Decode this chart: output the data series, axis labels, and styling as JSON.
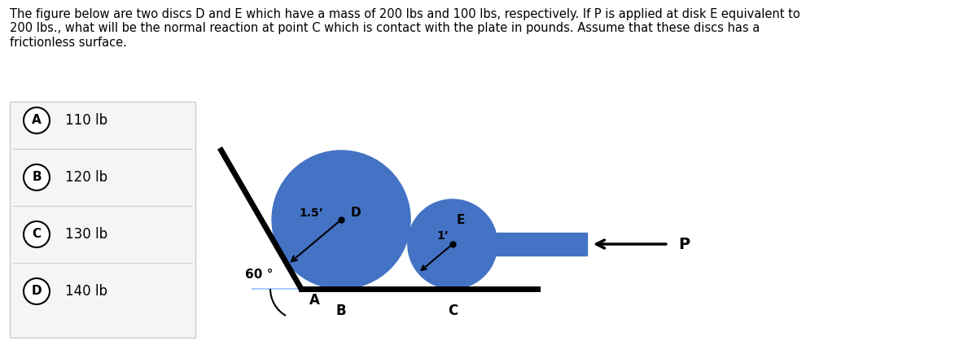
{
  "bg_color": "#ffffff",
  "text_color": "#000000",
  "disc_color": "#4472c4",
  "plate_color": "#1a1a1a",
  "question_text": "The figure below are two discs D and E which have a mass of 200 lbs and 100 lbs, respectively. If P is applied at disk E equivalent to\n200 lbs., what will be the normal reaction at point C which is contact with the plate in pounds. Assume that these discs has a\nfrictionless surface.",
  "choices": [
    {
      "label": "A",
      "text": "110 lb"
    },
    {
      "label": "B",
      "text": "120 lb"
    },
    {
      "label": "C",
      "text": "130 lb"
    },
    {
      "label": "D",
      "text": "140 lb"
    }
  ],
  "angle_label": "60 °",
  "point_A_label": "A",
  "point_B_label": "B",
  "point_C_label": "C",
  "point_P_label": "P",
  "disc_D_radius_label": "1.5’",
  "disc_D_label": "D",
  "disc_E_radius_label": "1’",
  "disc_E_label": "E"
}
